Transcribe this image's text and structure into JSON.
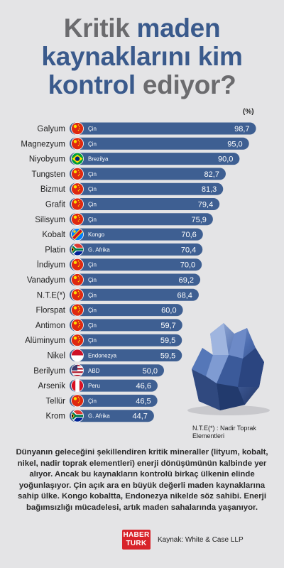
{
  "title": {
    "line1_gray": "Kritik",
    "line1_blue": "maden",
    "line2_blue": "kaynaklarını kim",
    "line3_blue": "kontrol",
    "line3_gray": "ediyor?"
  },
  "unit_label": "(%)",
  "colors": {
    "bar": "#3e5f92",
    "title_blue": "#3a5a8c",
    "title_gray": "#6b6b6e",
    "logo_red": "#d8232a"
  },
  "chart_data": {
    "type": "bar",
    "orientation": "horizontal",
    "categories": [
      "Galyum",
      "Magnezyum",
      "Niyobyum",
      "Tungsten",
      "Bizmut",
      "Grafit",
      "Silisyum",
      "Kobalt",
      "Platin",
      "İndiyum",
      "Vanadyum",
      "N.T.E(*)",
      "Florspat",
      "Antimon",
      "Alüminyum",
      "Nikel",
      "Berilyum",
      "Arsenik",
      "Tellür",
      "Krom"
    ],
    "countries": [
      "Çin",
      "Çin",
      "Brezilya",
      "Çin",
      "Çin",
      "Çin",
      "Çin",
      "Kongo",
      "G. Afrika",
      "Çin",
      "Çin",
      "Çin",
      "Çin",
      "Çin",
      "Çin",
      "Endonezya",
      "ABD",
      "Peru",
      "Çin",
      "G. Afrika"
    ],
    "flags": [
      "china",
      "china",
      "brazil",
      "china",
      "china",
      "china",
      "china",
      "congo",
      "south-africa",
      "china",
      "china",
      "china",
      "china",
      "china",
      "china",
      "indonesia",
      "usa",
      "peru",
      "china",
      "south-africa"
    ],
    "values": [
      98.7,
      95.0,
      90.0,
      82.7,
      81.3,
      79.4,
      75.9,
      70.6,
      70.4,
      70.0,
      69.2,
      68.4,
      60.0,
      59.7,
      59.5,
      59.5,
      50.0,
      46.6,
      46.5,
      44.7
    ],
    "value_labels": [
      "98,7",
      "95,0",
      "90,0",
      "82,7",
      "81,3",
      "79,4",
      "75,9",
      "70,6",
      "70,4",
      "70,0",
      "69,2",
      "68,4",
      "60,0",
      "59,7",
      "59,5",
      "59,5",
      "50,0",
      "46,6",
      "46,5",
      "44,7"
    ]
  },
  "footnote": "N.T.E(*) : Nadir Toprak Elementleri",
  "description": "Dünyanın geleceğini şekillendiren kritik mineraller (lityum, kobalt, nikel, nadir toprak elementleri) enerji dönüşümünün kalbinde yer alıyor. Ancak bu kaynakların kontrolü birkaç ülkenin elinde yoğunlaşıyor. Çin açık ara en büyük değerli maden kaynaklarına sahip ülke. Kongo kobaltta, Endonezya nikelde söz sahibi. Enerji bağımsızlığı mücadelesi, artık maden sahalarında yaşanıyor.",
  "logo": {
    "line1": "HABER",
    "line2": "TURK"
  },
  "source": "Kaynak: White & Case LLP"
}
